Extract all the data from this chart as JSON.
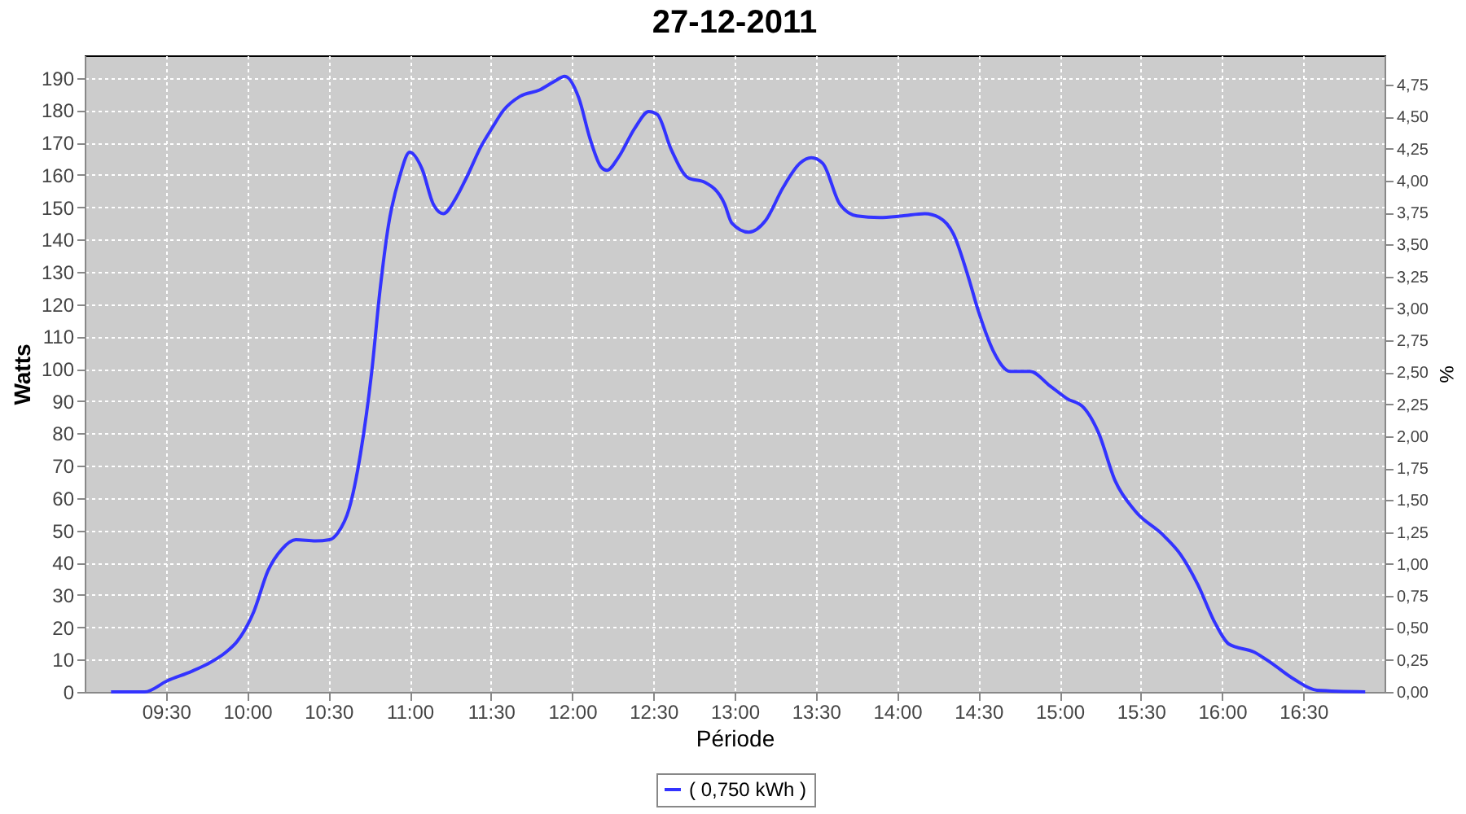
{
  "chart_data": {
    "type": "line",
    "title": "27-12-2011",
    "xlabel": "Période",
    "ylabel": "Watts",
    "y2label": "%",
    "x": [
      9.162,
      9.369,
      9.507,
      9.66,
      9.765,
      9.869,
      9.938,
      10.041,
      10.128,
      10.214,
      10.3,
      10.421,
      10.507,
      10.559,
      10.628,
      10.697,
      10.766,
      10.817,
      10.869,
      10.938,
      11.0,
      11.076,
      11.145,
      11.207,
      11.283,
      11.352,
      11.438,
      11.507,
      11.576,
      11.679,
      11.8,
      11.886,
      11.955,
      12.041,
      12.11,
      12.179,
      12.214,
      12.283,
      12.386,
      12.472,
      12.524,
      12.61,
      12.714,
      12.817,
      12.938,
      12.983,
      13.087,
      13.192,
      13.297,
      13.402,
      13.472,
      13.542,
      13.647,
      13.752,
      13.892,
      14.031,
      14.171,
      14.259,
      14.346,
      14.434,
      14.503,
      14.591,
      14.696,
      14.818,
      14.941,
      15.045,
      15.15,
      15.238,
      15.343,
      15.465,
      15.64,
      15.745,
      15.85,
      15.955,
      16.042,
      16.199,
      16.304,
      16.444,
      16.584,
      16.881
    ],
    "series": [
      {
        "name": "( 0,750 kWh )",
        "color": "#3333ff",
        "values": [
          0,
          0,
          3.4,
          6.4,
          8.9,
          12.3,
          15.6,
          24.9,
          37.5,
          44.2,
          47.1,
          46.7,
          47.1,
          49.3,
          56.8,
          73.6,
          98.9,
          124.1,
          144.3,
          159.4,
          167,
          161.9,
          151,
          148,
          152.7,
          159.4,
          168.7,
          174.5,
          179.9,
          184.3,
          186.3,
          188.8,
          190.5,
          183.8,
          171.2,
          162.4,
          161.4,
          165.3,
          174.5,
          179.6,
          178.7,
          167.8,
          159.1,
          157.7,
          151,
          145.1,
          142.3,
          146,
          156,
          163.6,
          165.3,
          163.6,
          151,
          147.3,
          146.8,
          147.3,
          148,
          146.8,
          141.8,
          129.1,
          117.4,
          105.6,
          99.2,
          99.2,
          94.7,
          90.8,
          87.9,
          80.4,
          65.2,
          56,
          48.4,
          42.5,
          33.3,
          21.5,
          14.8,
          12.3,
          8.9,
          3.9,
          0.5,
          0
        ]
      }
    ],
    "xlim": [
      9,
      17
    ],
    "xticks": [
      {
        "value": 9.5,
        "label": "09:30"
      },
      {
        "value": 10,
        "label": "10:00"
      },
      {
        "value": 10.5,
        "label": "10:30"
      },
      {
        "value": 11,
        "label": "11:00"
      },
      {
        "value": 11.5,
        "label": "11:30"
      },
      {
        "value": 12,
        "label": "12:00"
      },
      {
        "value": 12.5,
        "label": "12:30"
      },
      {
        "value": 13,
        "label": "13:00"
      },
      {
        "value": 13.5,
        "label": "13:30"
      },
      {
        "value": 14,
        "label": "14:00"
      },
      {
        "value": 14.5,
        "label": "14:30"
      },
      {
        "value": 15,
        "label": "15:00"
      },
      {
        "value": 15.5,
        "label": "15:30"
      },
      {
        "value": 16,
        "label": "16:00"
      },
      {
        "value": 16.5,
        "label": "16:30"
      }
    ],
    "ylim": [
      0,
      197
    ],
    "yticks": [
      0,
      10,
      20,
      30,
      40,
      50,
      60,
      70,
      80,
      90,
      100,
      110,
      120,
      130,
      140,
      150,
      160,
      170,
      180,
      190
    ],
    "y2lim": [
      0,
      4.98
    ],
    "y2ticks": [
      {
        "value": 0,
        "label": "0,00"
      },
      {
        "value": 0.25,
        "label": "0,25"
      },
      {
        "value": 0.5,
        "label": "0,50"
      },
      {
        "value": 0.75,
        "label": "0,75"
      },
      {
        "value": 1,
        "label": "1,00"
      },
      {
        "value": 1.25,
        "label": "1,25"
      },
      {
        "value": 1.5,
        "label": "1,50"
      },
      {
        "value": 1.75,
        "label": "1,75"
      },
      {
        "value": 2,
        "label": "2,00"
      },
      {
        "value": 2.25,
        "label": "2,25"
      },
      {
        "value": 2.5,
        "label": "2,50"
      },
      {
        "value": 2.75,
        "label": "2,75"
      },
      {
        "value": 3,
        "label": "3,00"
      },
      {
        "value": 3.25,
        "label": "3,25"
      },
      {
        "value": 3.5,
        "label": "3,50"
      },
      {
        "value": 3.75,
        "label": "3,75"
      },
      {
        "value": 4,
        "label": "4,00"
      },
      {
        "value": 4.25,
        "label": "4,25"
      },
      {
        "value": 4.5,
        "label": "4,50"
      },
      {
        "value": 4.75,
        "label": "4,75"
      }
    ],
    "grid": true,
    "legend": "bottom",
    "line_style": "solid",
    "marker": "none"
  }
}
